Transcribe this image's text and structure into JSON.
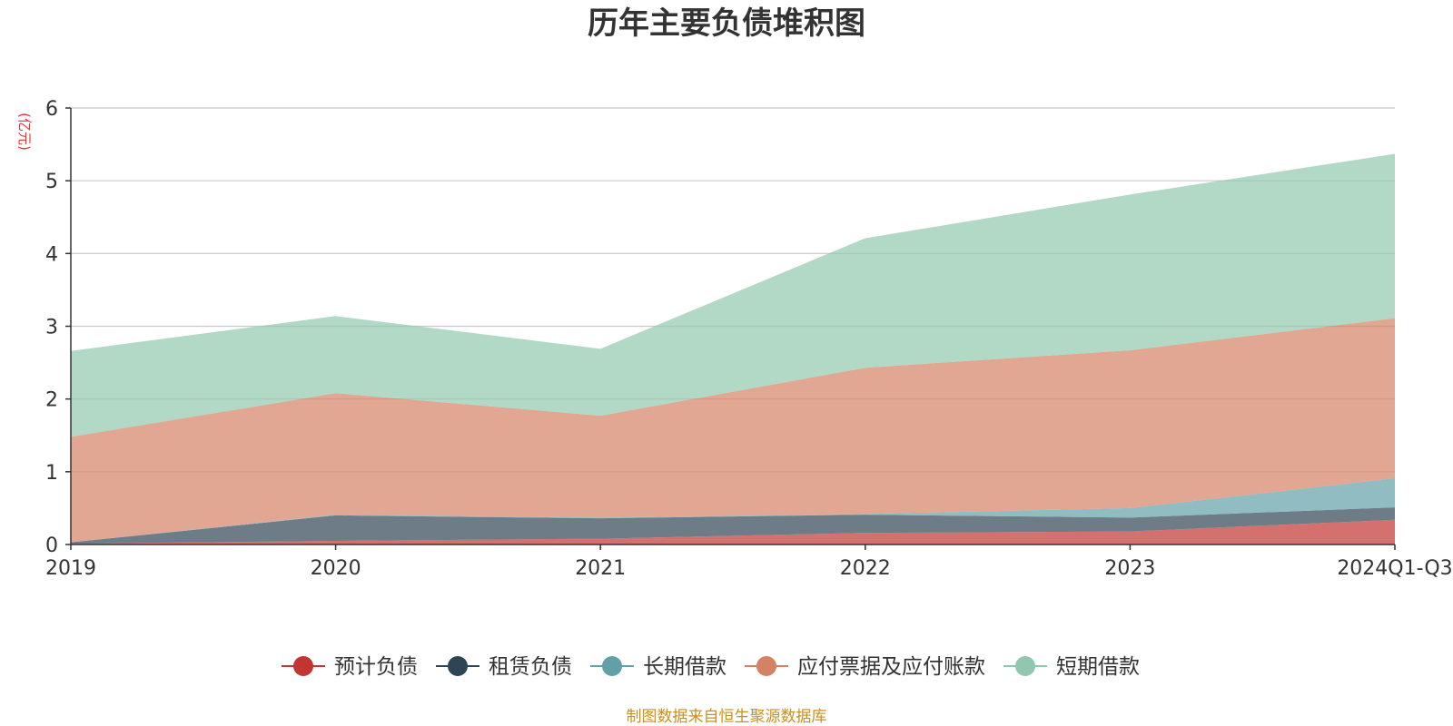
{
  "chart_data": {
    "type": "area",
    "stacked": true,
    "title": "历年主要负债堆积图",
    "unit_label": "(亿元)",
    "categories": [
      "2019",
      "2020",
      "2021",
      "2022",
      "2023",
      "2024Q1-Q3"
    ],
    "ylim": [
      0,
      6
    ],
    "yticks": [
      "0",
      "1",
      "2",
      "3",
      "4",
      "5",
      "6"
    ],
    "grid": true,
    "legend_position": "bottom-center",
    "series": [
      {
        "name": "预计负债",
        "color": "#c23531",
        "values": [
          0.01,
          0.05,
          0.08,
          0.16,
          0.18,
          0.34
        ]
      },
      {
        "name": "租赁负债",
        "color": "#2f4554",
        "values": [
          0.02,
          0.35,
          0.28,
          0.25,
          0.19,
          0.17
        ]
      },
      {
        "name": "长期借款",
        "color": "#61a0a8",
        "values": [
          0.0,
          0.01,
          0.01,
          0.01,
          0.13,
          0.4
        ]
      },
      {
        "name": "应付票据及应付账款",
        "color": "#d48265",
        "values": [
          1.45,
          1.67,
          1.4,
          2.01,
          2.17,
          2.2
        ]
      },
      {
        "name": "短期借款",
        "color": "#91c7ae",
        "values": [
          1.18,
          1.06,
          0.92,
          1.78,
          2.14,
          2.26
        ]
      }
    ]
  },
  "source_note": "制图数据来自恒生聚源数据库"
}
